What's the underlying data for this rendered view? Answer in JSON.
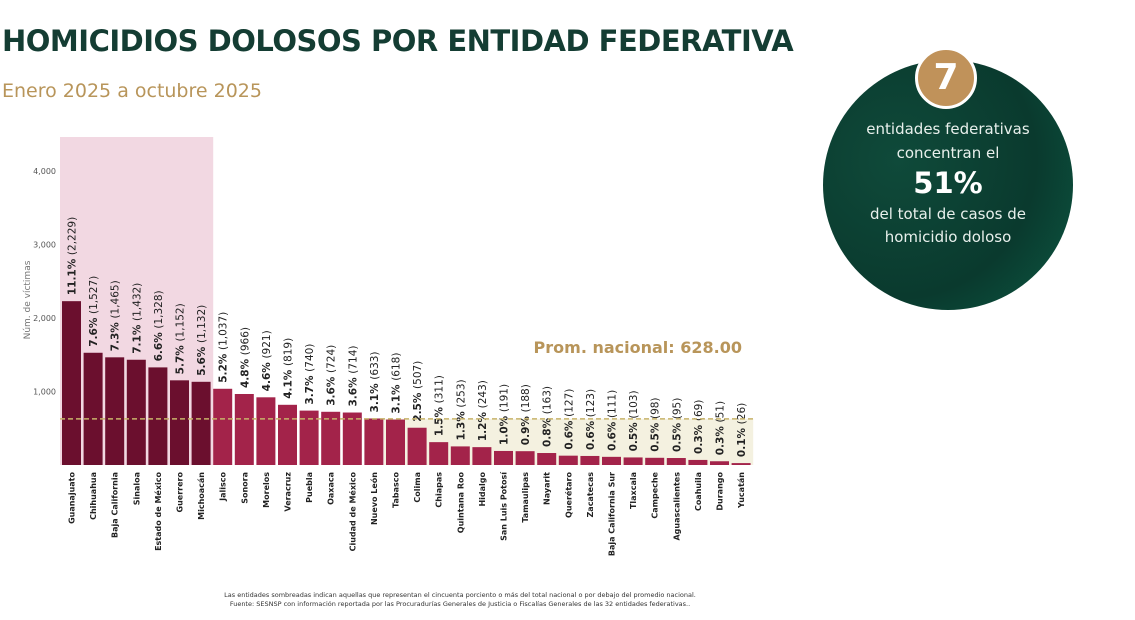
{
  "header": {
    "title": "HOMICIDIOS DOLOSOS POR ENTIDAD FEDERATIVA",
    "subtitle": "Enero 2025 a octubre 2025"
  },
  "callout": {
    "badge": "7",
    "line1": "entidades federativas",
    "line2": "concentran el",
    "big": "51%",
    "line3": "del total de casos de",
    "line4": "homicidio doloso"
  },
  "footnotes": [
    "Las entidades sombreadas indican aquellas que representan el cincuenta porciento o más del total nacional o por debajo del promedio nacional.",
    "Fuente: SESNSP con información reportada por las Procuradurías Generales de Justicia o Fiscalías Generales de las 32 entidades federativas.."
  ],
  "colors": {
    "top": "#6b0f2e",
    "rest": "#a3234a",
    "highlight_band": "#f2d8e2",
    "below_avg_band": "#f4f1e0",
    "avg_line": "#c8b36a",
    "title": "#143d33",
    "accent": "#b8955a"
  },
  "chart_data": {
    "type": "bar",
    "ylabel": "Núm. de víctimas",
    "ylim": [
      0,
      4400
    ],
    "yticks": [
      1000,
      2000,
      3000,
      4000
    ],
    "ytick_labels": [
      "1,000",
      "2,000",
      "3,000",
      "4,000"
    ],
    "average": {
      "value": 628,
      "label": "Prom. nacional: 628.00"
    },
    "highlight_count": 7,
    "categories": [
      "Guanajuato",
      "Chihuahua",
      "Baja California",
      "Sinaloa",
      "Estado de México",
      "Guerrero",
      "Michoacán",
      "Jalisco",
      "Sonora",
      "Morelos",
      "Veracruz",
      "Puebla",
      "Oaxaca",
      "Ciudad de México",
      "Nuevo León",
      "Tabasco",
      "Colima",
      "Chiapas",
      "Quintana Roo",
      "Hidalgo",
      "San Luis Potosí",
      "Tamaulipas",
      "Nayarit",
      "Querétaro",
      "Zacatecas",
      "Baja California Sur",
      "Tlaxcala",
      "Campeche",
      "Aguascalientes",
      "Coahuila",
      "Durango",
      "Yucatán"
    ],
    "values": [
      2229,
      1527,
      1465,
      1432,
      1328,
      1152,
      1132,
      1037,
      966,
      921,
      819,
      740,
      724,
      714,
      633,
      618,
      507,
      311,
      253,
      243,
      191,
      188,
      163,
      127,
      123,
      111,
      103,
      98,
      95,
      69,
      51,
      26
    ],
    "percents": [
      "11.1%",
      "7.6%",
      "7.3%",
      "7.1%",
      "6.6%",
      "5.7%",
      "5.6%",
      "5.2%",
      "4.8%",
      "4.6%",
      "4.1%",
      "3.7%",
      "3.6%",
      "3.6%",
      "3.1%",
      "3.1%",
      "2.5%",
      "1.5%",
      "1.3%",
      "1.2%",
      "1.0%",
      "0.9%",
      "0.8%",
      "0.6%",
      "0.6%",
      "0.6%",
      "0.5%",
      "0.5%",
      "0.5%",
      "0.3%",
      "0.3%",
      "0.1%"
    ],
    "value_labels": [
      "(2,229)",
      "(1,527)",
      "(1,465)",
      "(1,432)",
      "(1,328)",
      "(1,152)",
      "(1,132)",
      "(1,037)",
      "(966)",
      "(921)",
      "(819)",
      "(740)",
      "(724)",
      "(714)",
      "(633)",
      "(618)",
      "(507)",
      "(311)",
      "(253)",
      "(243)",
      "(191)",
      "(188)",
      "(163)",
      "(127)",
      "(123)",
      "(111)",
      "(103)",
      "(98)",
      "(95)",
      "(69)",
      "(51)",
      "(26)"
    ]
  }
}
